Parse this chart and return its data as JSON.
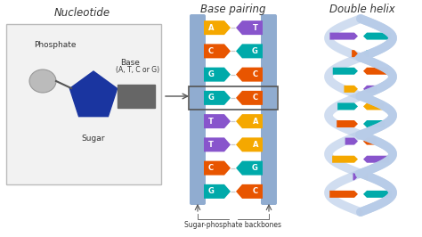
{
  "title_nucleotide": "Nucleotide",
  "title_base_pairing": "Base pairing",
  "title_double_helix": "Double helix",
  "label_phosphate": "Phosphate",
  "label_sugar": "Sugar",
  "label_base": "Base\n(A, T, C or G)",
  "label_backbones": "Sugar-phosphate backbones",
  "bg_color": "#ffffff",
  "backbone_color": "#90acd0",
  "box_bg": "#f0f0f0",
  "box_border": "#aaaaaa",
  "phosphate_color": "#bbbbbb",
  "sugar_color": "#1a35a0",
  "base_rect_color": "#666666",
  "pairs": [
    {
      "left": "A",
      "right": "T",
      "left_color": "#f5a800",
      "right_color": "#8855cc"
    },
    {
      "left": "C",
      "right": "G",
      "left_color": "#e85500",
      "right_color": "#00aaaa"
    },
    {
      "left": "G",
      "right": "C",
      "left_color": "#00aaaa",
      "right_color": "#e85500"
    },
    {
      "left": "G",
      "right": "C",
      "left_color": "#00aaaa",
      "right_color": "#e85500"
    },
    {
      "left": "T",
      "right": "A",
      "left_color": "#8855cc",
      "right_color": "#f5a800"
    },
    {
      "left": "T",
      "right": "A",
      "left_color": "#8855cc",
      "right_color": "#f5a800"
    },
    {
      "left": "C",
      "right": "G",
      "left_color": "#e85500",
      "right_color": "#00aaaa"
    },
    {
      "left": "G",
      "right": "C",
      "left_color": "#00aaaa",
      "right_color": "#e85500"
    }
  ],
  "highlight_row": 3,
  "text_color_dark": "#333333",
  "helix_strand_color": "#b8cce8",
  "helix_colors": [
    "#f5a800",
    "#8855cc",
    "#e85500",
    "#00aaaa",
    "#f5a800",
    "#00aaaa",
    "#e85500",
    "#8855cc",
    "#f5a800",
    "#8855cc",
    "#e85500",
    "#00aaaa"
  ],
  "helix_colors2": [
    "#8855cc",
    "#00aaaa",
    "#00aaaa",
    "#e85500",
    "#8855cc",
    "#f5a800",
    "#00aaaa",
    "#e85500",
    "#8855cc",
    "#f5a800",
    "#00aaaa",
    "#e85500"
  ]
}
